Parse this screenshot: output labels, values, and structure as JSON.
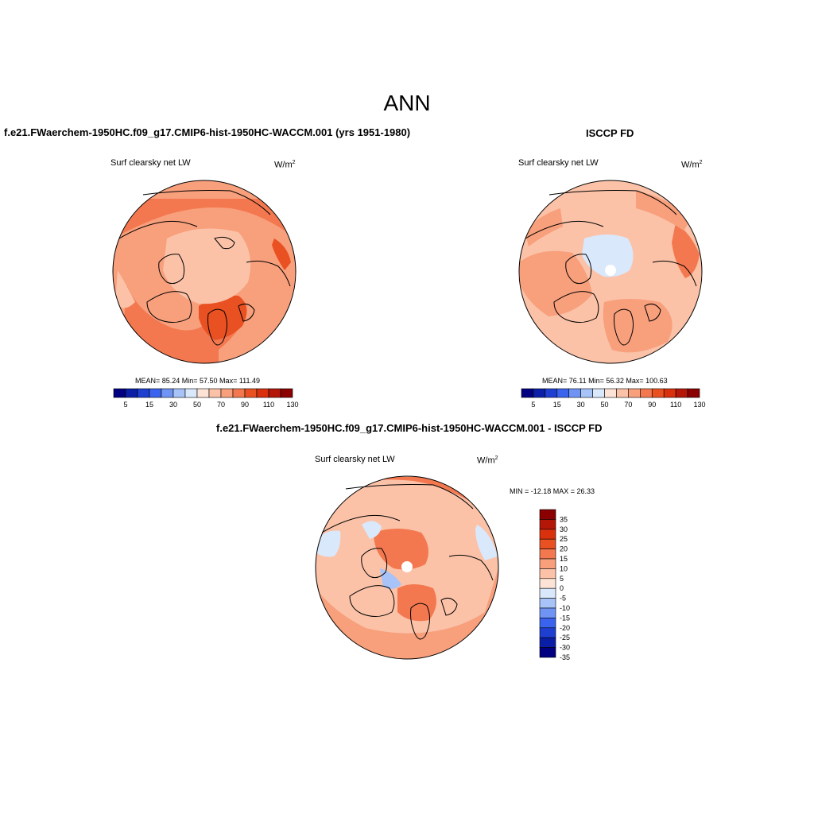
{
  "title": "ANN",
  "colors": {
    "blues": [
      "#000080",
      "#0b1fa6",
      "#1e3fd0",
      "#3a64ee",
      "#6f94f4",
      "#a7c3f8",
      "#d9e8fb"
    ],
    "reds": [
      "#fde3d6",
      "#fbc2a8",
      "#f89f7c",
      "#f3784f",
      "#e95123",
      "#d9300d",
      "#b41708",
      "#8b0000"
    ],
    "field_colors": {
      "pale": "#fde3d6",
      "light": "#fbc2a8",
      "mid": "#f89f7c",
      "orange": "#f3784f",
      "deep": "#e95123",
      "blue_pale": "#d9e8fb",
      "blue_light": "#a7c3f8"
    }
  },
  "panels": {
    "model": {
      "heading": "f.e21.FWaerchem-1950HC.f09_g17.CMIP6-hist-1950HC-WACCM.001 (yrs 1951-1980)",
      "variable": "Surf clearsky net LW",
      "units_base": "W/m",
      "units_exp": "2",
      "stats": "MEAN=  85.24  Min=  57.50  Max= 111.49",
      "colorbar_labels": [
        "5",
        "15",
        "30",
        "50",
        "70",
        "90",
        "110",
        "130"
      ]
    },
    "obs": {
      "heading": "ISCCP FD",
      "variable": "Surf clearsky net LW",
      "units_base": "W/m",
      "units_exp": "2",
      "stats": "MEAN=  76.11  Min=  56.32  Max= 100.63",
      "colorbar_labels": [
        "5",
        "15",
        "30",
        "50",
        "70",
        "90",
        "110",
        "130"
      ]
    },
    "diff": {
      "heading": "f.e21.FWaerchem-1950HC.f09_g17.CMIP6-hist-1950HC-WACCM.001 - ISCCP FD",
      "variable": "Surf clearsky net LW",
      "units_base": "W/m",
      "units_exp": "2",
      "stats": "MIN = -12.18 MAX =  26.33",
      "colorbar_labels": [
        "35",
        "30",
        "25",
        "20",
        "15",
        "10",
        "5",
        "0",
        "-5",
        "-10",
        "-15",
        "-20",
        "-25",
        "-30",
        "-35"
      ]
    }
  }
}
